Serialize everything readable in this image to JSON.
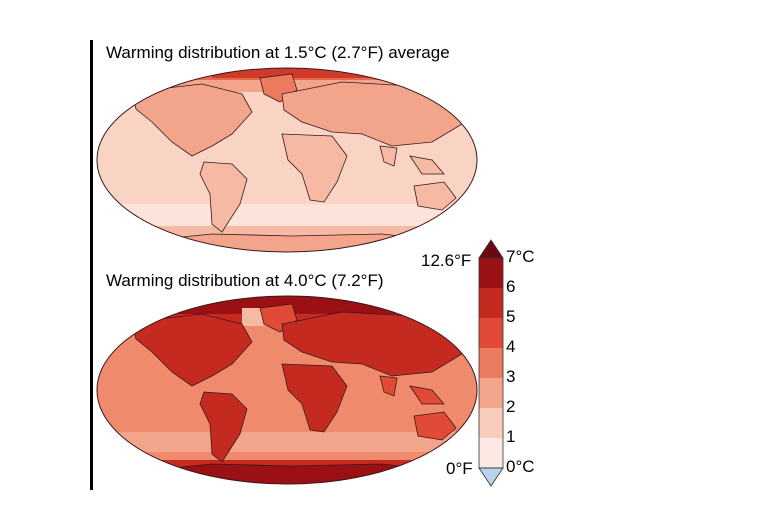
{
  "map1": {
    "title": "Warming distribution at 1.5°C (2.7°F) average"
  },
  "map2": {
    "title": "Warming distribution at 4.0°C (7.2°F)"
  },
  "colorbar": {
    "fahrenheit_top": "12.6°F",
    "fahrenheit_bottom": "0°F",
    "ticks": [
      "7°C",
      "6",
      "5",
      "4",
      "3",
      "2",
      "1",
      "0°C"
    ],
    "colors": [
      "#fbe8e2",
      "#f8cdbd",
      "#f3a58c",
      "#ec7a5e",
      "#e04a36",
      "#c52a20",
      "#9a1014"
    ],
    "over_color": "#6a0a10",
    "under_color": "#b9d3ec"
  },
  "colors": {
    "land_outline": "#3a1a1a",
    "ocean_1p5": "#f9d3c3",
    "ocean_4p0": "#ef8a6c"
  }
}
